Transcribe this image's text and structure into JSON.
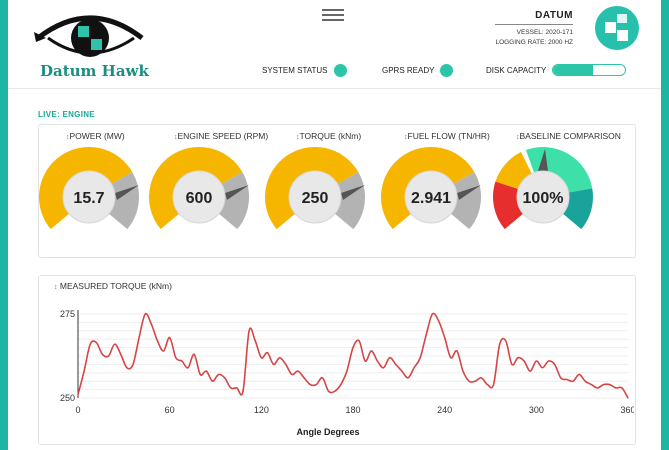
{
  "header": {
    "brand": "Datum Hawk",
    "datum_name": "DATUM",
    "vessel": "VESSEL: 2020-171",
    "logging_rate": "LOGGING RATE: 2000 HZ"
  },
  "status": {
    "system_status_label": "SYSTEM STATUS",
    "gprs_label": "GPRS READY",
    "disk_label": "DISK CAPACITY",
    "disk_fill_percent": 55
  },
  "section_label": "LIVE: ENGINE",
  "gauges": [
    {
      "label": "POWER (MW)",
      "value": "15.7"
    },
    {
      "label": "ENGINE SPEED (RPM)",
      "value": "600"
    },
    {
      "label": "TORQUE (kNm)",
      "value": "250"
    },
    {
      "label": "FUEL FLOW (TN/HR)",
      "value": "2.941"
    },
    {
      "label": "BASELINE COMPARISON",
      "value": "100%"
    }
  ],
  "colors": {
    "accent": "#1fb5a5",
    "gauge_orange": "#f6b600",
    "gauge_grey": "#b3b3b3",
    "baseline_red": "#e62e2e",
    "baseline_green": "#3de0a8",
    "baseline_teal": "#1aa39b",
    "line": "#d64545"
  },
  "chart_data": {
    "type": "line",
    "title": "MEASURED TORQUE (kNm)",
    "xlabel": "Angle Degrees",
    "ylabel": "",
    "xlim": [
      0,
      360
    ],
    "ylim": [
      250,
      275
    ],
    "x_ticks": [
      0,
      60,
      120,
      180,
      240,
      300,
      360
    ],
    "y_ticks": [
      250,
      275
    ],
    "series": [
      {
        "values": [
          [
            0,
            251
          ],
          [
            4,
            258
          ],
          [
            8,
            266
          ],
          [
            12,
            266.5
          ],
          [
            16,
            263
          ],
          [
            20,
            262.5
          ],
          [
            24,
            266
          ],
          [
            28,
            263
          ],
          [
            32,
            259
          ],
          [
            36,
            260
          ],
          [
            40,
            268
          ],
          [
            44,
            275
          ],
          [
            48,
            272
          ],
          [
            52,
            267
          ],
          [
            56,
            264
          ],
          [
            60,
            268
          ],
          [
            64,
            262
          ],
          [
            68,
            261
          ],
          [
            72,
            259
          ],
          [
            76,
            263
          ],
          [
            80,
            257
          ],
          [
            84,
            258
          ],
          [
            88,
            255
          ],
          [
            92,
            257
          ],
          [
            96,
            256
          ],
          [
            100,
            253
          ],
          [
            104,
            253
          ],
          [
            108,
            252
          ],
          [
            112,
            270
          ],
          [
            116,
            267
          ],
          [
            120,
            262
          ],
          [
            124,
            263.5
          ],
          [
            128,
            260
          ],
          [
            132,
            262
          ],
          [
            136,
            260
          ],
          [
            140,
            257
          ],
          [
            144,
            258
          ],
          [
            148,
            256
          ],
          [
            152,
            254
          ],
          [
            156,
            254
          ],
          [
            160,
            256
          ],
          [
            164,
            252
          ],
          [
            168,
            252
          ],
          [
            172,
            254
          ],
          [
            176,
            258
          ],
          [
            180,
            265
          ],
          [
            184,
            267
          ],
          [
            188,
            261
          ],
          [
            192,
            264
          ],
          [
            196,
            261
          ],
          [
            200,
            259
          ],
          [
            204,
            262
          ],
          [
            208,
            260
          ],
          [
            212,
            258
          ],
          [
            216,
            256
          ],
          [
            220,
            259
          ],
          [
            224,
            262
          ],
          [
            228,
            269
          ],
          [
            232,
            275
          ],
          [
            236,
            273
          ],
          [
            240,
            268
          ],
          [
            244,
            262
          ],
          [
            248,
            264
          ],
          [
            252,
            258
          ],
          [
            256,
            255
          ],
          [
            260,
            255
          ],
          [
            264,
            256
          ],
          [
            268,
            254
          ],
          [
            272,
            254
          ],
          [
            276,
            266
          ],
          [
            280,
            267
          ],
          [
            284,
            260
          ],
          [
            288,
            262
          ],
          [
            292,
            261
          ],
          [
            296,
            258
          ],
          [
            300,
            261
          ],
          [
            304,
            259
          ],
          [
            308,
            261
          ],
          [
            312,
            260
          ],
          [
            316,
            256
          ],
          [
            320,
            255.5
          ],
          [
            324,
            255
          ],
          [
            328,
            257
          ],
          [
            332,
            255
          ],
          [
            336,
            254
          ],
          [
            340,
            253
          ],
          [
            344,
            254
          ],
          [
            348,
            254
          ],
          [
            352,
            253
          ],
          [
            356,
            253
          ],
          [
            360,
            250
          ]
        ]
      }
    ]
  }
}
